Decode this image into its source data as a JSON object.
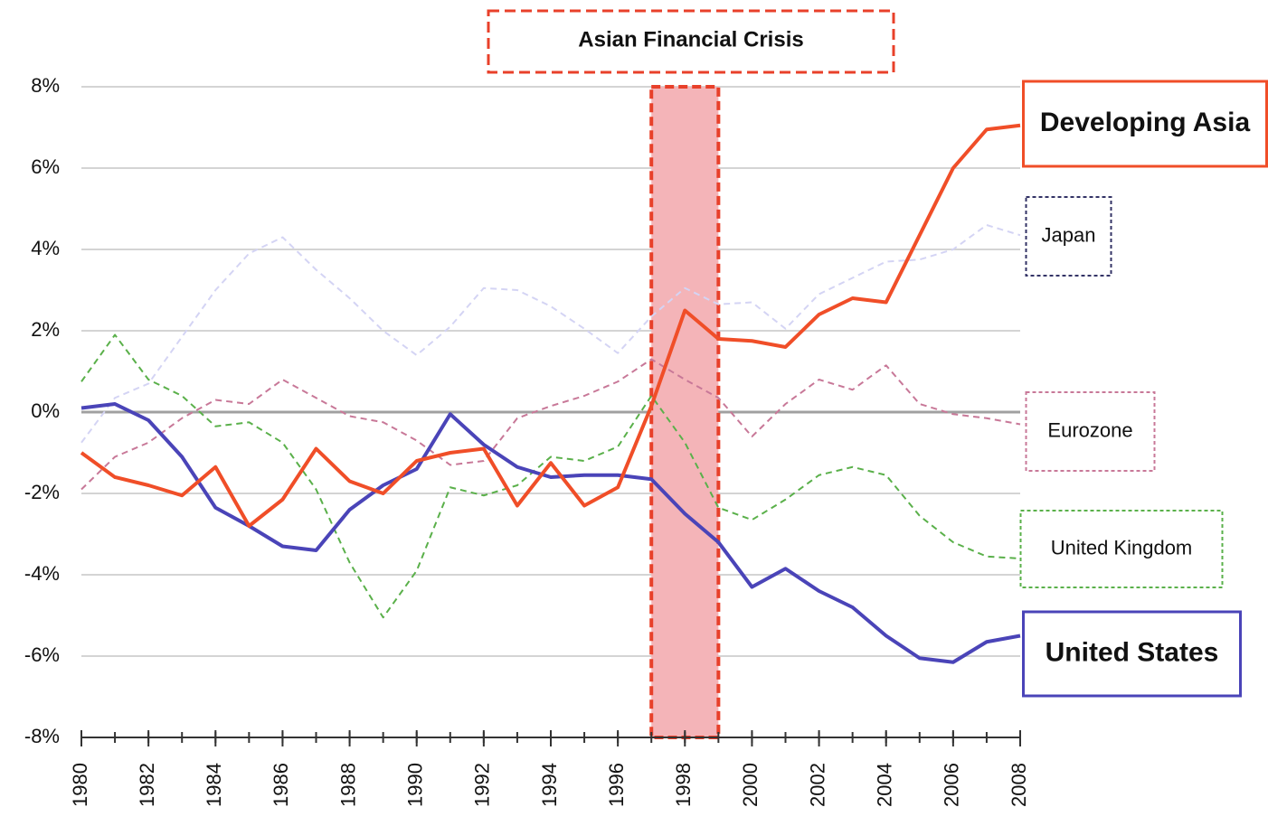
{
  "chart_data": {
    "type": "line",
    "x": [
      1980,
      1981,
      1982,
      1983,
      1984,
      1985,
      1986,
      1987,
      1988,
      1989,
      1990,
      1991,
      1992,
      1993,
      1994,
      1995,
      1996,
      1997,
      1998,
      1999,
      2000,
      2001,
      2002,
      2003,
      2004,
      2005,
      2006,
      2007,
      2008
    ],
    "xlim": [
      1980,
      2008
    ],
    "xticks": [
      1980,
      1982,
      1984,
      1986,
      1988,
      1990,
      1992,
      1994,
      1996,
      1998,
      2000,
      2002,
      2004,
      2006,
      2008
    ],
    "ylim": [
      -8,
      8
    ],
    "yticks": [
      {
        "value": -8,
        "label": "-8%"
      },
      {
        "value": -6,
        "label": "-6%"
      },
      {
        "value": -4,
        "label": "-4%"
      },
      {
        "value": -2,
        "label": "-2%"
      },
      {
        "value": 0,
        "label": "0%"
      },
      {
        "value": 2,
        "label": "2%"
      },
      {
        "value": 4,
        "label": "4%"
      },
      {
        "value": 6,
        "label": "6%"
      },
      {
        "value": 8,
        "label": "8%"
      }
    ],
    "grid": true,
    "highlight": {
      "label": "Asian Financial Crisis",
      "from": 1997,
      "to": 1999,
      "color": "#f4b4b8"
    },
    "series": [
      {
        "name": "Japan",
        "color": "#d4d4f4",
        "style": "dashed",
        "values": [
          -0.75,
          0.35,
          0.7,
          1.85,
          3.0,
          3.9,
          4.3,
          3.5,
          2.8,
          2.0,
          1.4,
          2.1,
          3.05,
          3.0,
          2.6,
          2.05,
          1.45,
          2.35,
          3.05,
          2.65,
          2.7,
          2.05,
          2.9,
          3.3,
          3.7,
          3.75,
          4.0,
          4.6,
          4.35
        ]
      },
      {
        "name": "Eurozone",
        "color": "#c87898",
        "style": "dashed",
        "values": [
          -1.9,
          -1.1,
          -0.75,
          -0.15,
          0.3,
          0.2,
          0.8,
          0.35,
          -0.1,
          -0.25,
          -0.7,
          -1.3,
          -1.2,
          -0.15,
          0.15,
          0.4,
          0.75,
          1.3,
          0.8,
          0.35,
          -0.6,
          0.2,
          0.8,
          0.55,
          1.15,
          0.2,
          -0.05,
          -0.15,
          -0.3
        ]
      },
      {
        "name": "United Kingdom",
        "color": "#5ab04a",
        "style": "dashed",
        "values": [
          0.75,
          1.9,
          0.8,
          0.4,
          -0.35,
          -0.25,
          -0.75,
          -1.9,
          -3.7,
          -5.05,
          -3.9,
          -1.85,
          -2.05,
          -1.8,
          -1.1,
          -1.2,
          -0.85,
          0.4,
          -0.75,
          -2.35,
          -2.65,
          -2.15,
          -1.55,
          -1.35,
          -1.55,
          -2.55,
          -3.2,
          -3.55,
          -3.6
        ]
      },
      {
        "name": "United States",
        "color": "#4a44b8",
        "style": "solid",
        "values": [
          0.1,
          0.2,
          -0.2,
          -1.1,
          -2.35,
          -2.8,
          -3.3,
          -3.4,
          -2.4,
          -1.8,
          -1.4,
          -0.05,
          -0.8,
          -1.35,
          -1.6,
          -1.55,
          -1.55,
          -1.65,
          -2.5,
          -3.2,
          -4.3,
          -3.85,
          -4.4,
          -4.8,
          -5.5,
          -6.05,
          -6.15,
          -5.65,
          -5.5
        ]
      },
      {
        "name": "Developing Asia",
        "color": "#f04e28",
        "style": "solid",
        "values": [
          -1.0,
          -1.6,
          -1.8,
          -2.05,
          -1.35,
          -2.8,
          -2.15,
          -0.9,
          -1.7,
          -2.0,
          -1.2,
          -1.0,
          -0.9,
          -2.3,
          -1.25,
          -2.3,
          -1.85,
          0.15,
          2.5,
          1.8,
          1.75,
          1.6,
          2.4,
          2.8,
          2.7,
          4.35,
          6.0,
          6.95,
          7.05
        ]
      }
    ]
  }
}
